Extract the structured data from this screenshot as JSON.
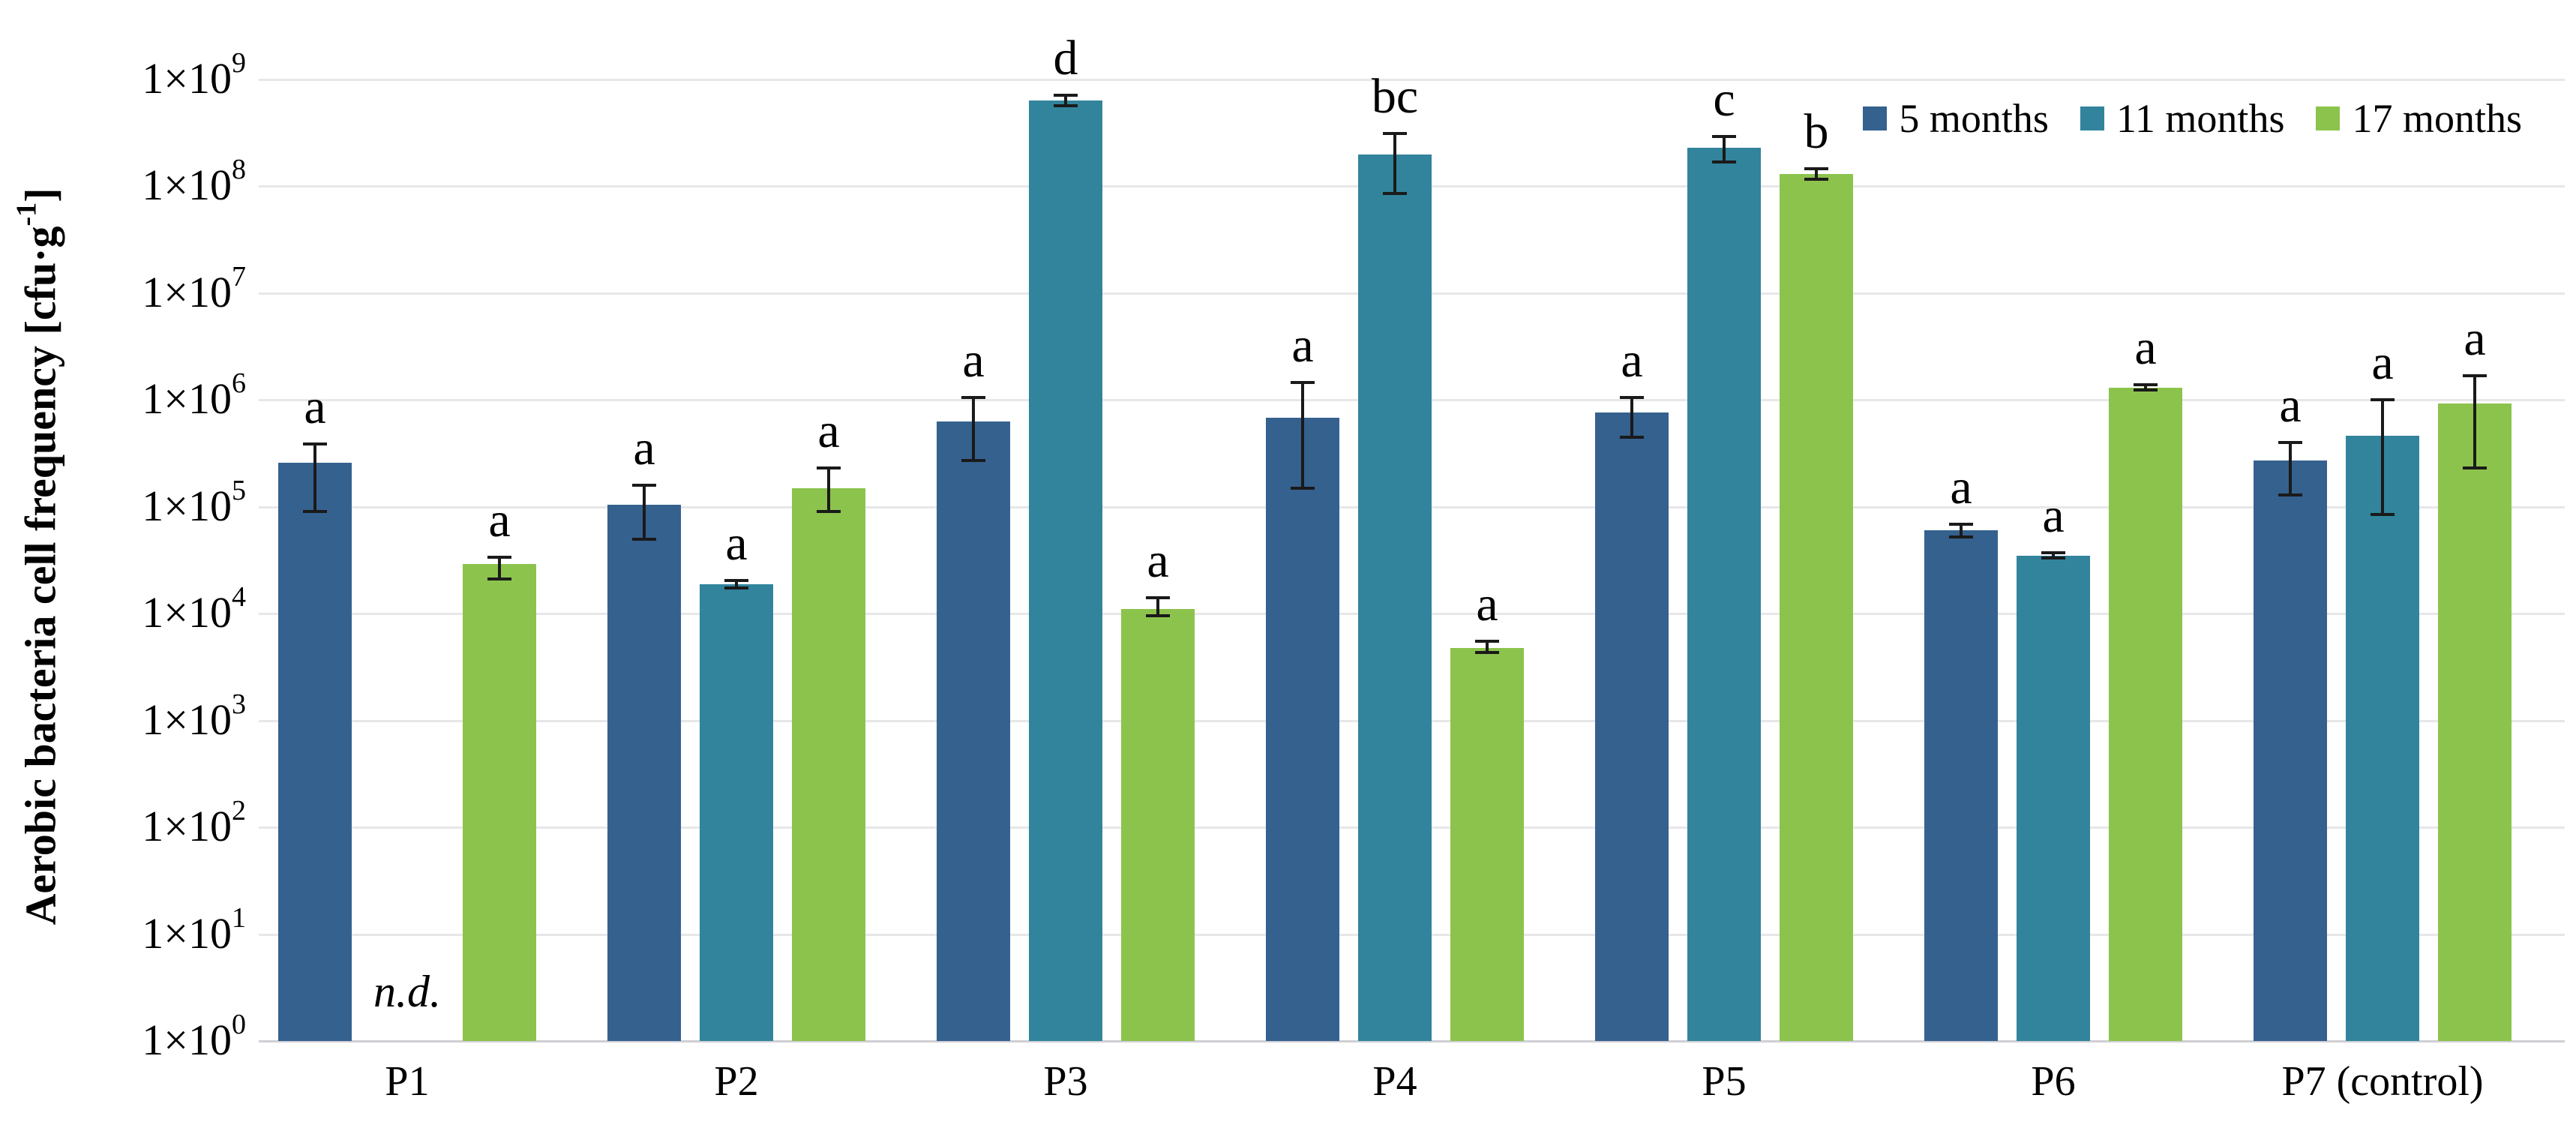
{
  "chart_data": {
    "type": "bar",
    "y_scale": "log10",
    "ylim": [
      1,
      1000000000
    ],
    "grid": "on",
    "legend_position": "top-right",
    "title": "",
    "xlabel": "",
    "ylabel": "Aerobic bacteria cell frequency [cfu·g-1]",
    "ylabel_main": "Aerobic bacteria cell frequency [cfu·g",
    "ylabel_sup": "-1",
    "ylabel_close": "]",
    "y_tick_mantissa": "1×10",
    "y_tick_exponents": [
      "0",
      "1",
      "2",
      "3",
      "4",
      "5",
      "6",
      "7",
      "8",
      "9"
    ],
    "categories": [
      "P1",
      "P2",
      "P3",
      "P4",
      "P5",
      "P6",
      "P7 (control)"
    ],
    "not_detected_label": "n.d.",
    "grid_color": "#e7e7ea",
    "axis_color": "#cfcfd4",
    "text_color": "#000000",
    "series": [
      {
        "name": "5 months",
        "color": "#35618f",
        "values": [
          260000,
          105000,
          630000,
          680000,
          760000,
          60000,
          270000
        ],
        "err_low": [
          90000,
          50000,
          270000,
          150000,
          450000,
          52000,
          130000
        ],
        "err_high": [
          390000,
          160000,
          1050000,
          1450000,
          1050000,
          69000,
          400000
        ],
        "letters": [
          "a",
          "a",
          "a",
          "a",
          "a",
          "a",
          "a"
        ]
      },
      {
        "name": "11 months",
        "color": "#31849b",
        "values": [
          null,
          19000,
          640000000,
          200000000,
          230000000,
          35000,
          460000
        ],
        "err_low": [
          null,
          17500,
          570000000,
          85000000,
          170000000,
          33000,
          85000
        ],
        "err_high": [
          null,
          20500,
          710000000,
          310000000,
          295000000,
          37000,
          1000000
        ],
        "letters": [
          "",
          "a",
          "d",
          "bc",
          "c",
          "a",
          "a"
        ]
      },
      {
        "name": "17 months",
        "color": "#8cc34d",
        "values": [
          29000,
          150000,
          11000,
          4800,
          130000000,
          1300000,
          930000
        ],
        "err_low": [
          21000,
          90000,
          9500,
          4300,
          116000000,
          1250000,
          230000
        ],
        "err_high": [
          34000,
          230000,
          14000,
          5500,
          146000000,
          1400000,
          1700000
        ],
        "letters": [
          "a",
          "a",
          "a",
          "a",
          "b",
          "a",
          "a"
        ]
      }
    ]
  },
  "legend": {
    "items": [
      {
        "label": "5 months",
        "color": "#35618f"
      },
      {
        "label": "11 months",
        "color": "#31849b"
      },
      {
        "label": "17 months",
        "color": "#8cc34d"
      }
    ]
  }
}
